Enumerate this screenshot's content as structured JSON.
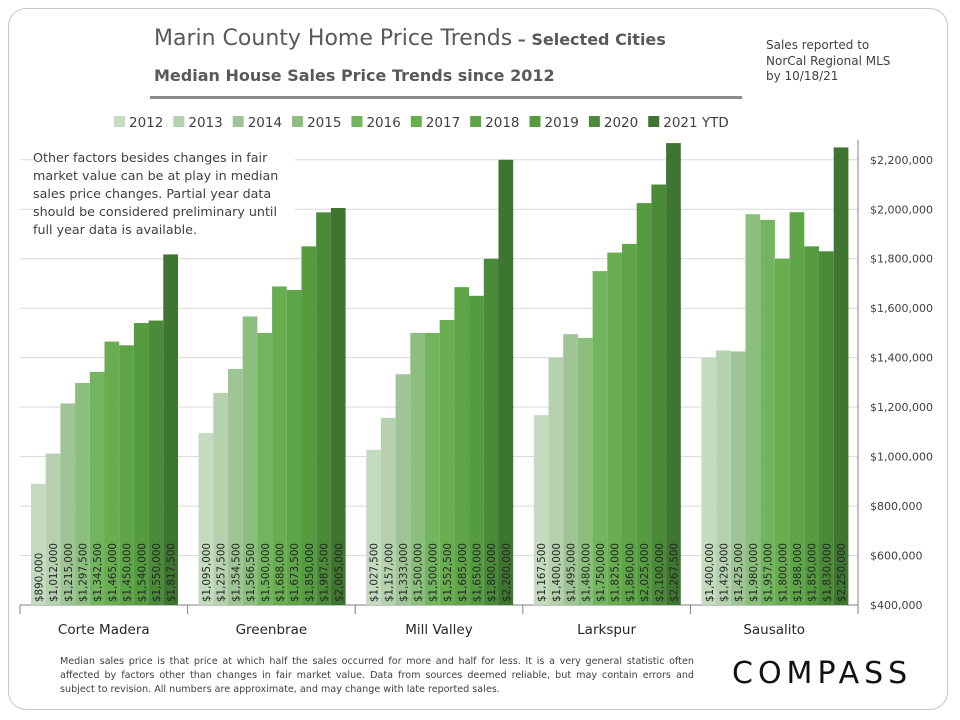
{
  "header": {
    "title_main": "Marin County Home Price Trends",
    "title_suffix": " – Selected Cities",
    "subtitle": "Median House Sales Price Trends since 2012",
    "source_lines": [
      "Sales reported to",
      "NorCal Regional MLS",
      "by 10/18/21"
    ]
  },
  "note_text": "Other factors besides changes in fair market value can be at play in median sales price changes. Partial year data should be considered preliminary until full year data is available.",
  "footnote": "Median sales price is that price at which half the sales occurred for more and half for less. It is a very general statistic often affected by factors other than changes in fair market value. Data from sources deemed reliable, but may contain errors and subject to revision. All numbers are approximate, and may change with late reported sales.",
  "logo_text": "COMPASS",
  "chart_data": {
    "type": "bar",
    "categories": [
      "Corte Madera",
      "Greenbrae",
      "Mill Valley",
      "Larkspur",
      "Sausalito"
    ],
    "ylim": [
      400000,
      2280000
    ],
    "yticks": [
      400000,
      600000,
      800000,
      1000000,
      1200000,
      1400000,
      1600000,
      1800000,
      2000000,
      2200000
    ],
    "ytick_labels": [
      "$400,000",
      "$600,000",
      "$800,000",
      "$1,000,000",
      "$1,200,000",
      "$1,400,000",
      "$1,600,000",
      "$1,800,000",
      "$2,000,000",
      "$2,200,000"
    ],
    "legend_position": "top",
    "grid": "horizontal",
    "series": [
      {
        "name": "2012",
        "color": "#c5dbbf",
        "values": [
          890000,
          1095000,
          1027500,
          1167500,
          1400000
        ],
        "labels": [
          "$890,000",
          "$1,095,000",
          "$1,027,500",
          "$1,167,500",
          "$1,400,000"
        ]
      },
      {
        "name": "2013",
        "color": "#b5d1ad",
        "values": [
          1012000,
          1257500,
          1157000,
          1400000,
          1429000
        ],
        "labels": [
          "$1,012,000",
          "$1,257,500",
          "$1,157,000",
          "$1,400,000",
          "$1,429,000"
        ]
      },
      {
        "name": "2014",
        "color": "#9fc496",
        "values": [
          1215000,
          1354500,
          1333000,
          1495000,
          1425000
        ],
        "labels": [
          "$1,215,000",
          "$1,354,500",
          "$1,333,000",
          "$1,495,000",
          "$1,425,000"
        ]
      },
      {
        "name": "2015",
        "color": "#8cbf7e",
        "values": [
          1297500,
          1566500,
          1500000,
          1480000,
          1980000
        ],
        "labels": [
          "$1,297,500",
          "$1,566,500",
          "$1,500,000",
          "$1,480,000",
          "$1,980,000"
        ]
      },
      {
        "name": "2016",
        "color": "#73b55e",
        "values": [
          1342500,
          1500000,
          1500000,
          1750000,
          1957000
        ],
        "labels": [
          "$1,342,500",
          "$1,500,000",
          "$1,500,000",
          "$1,750,000",
          "$1,957,000"
        ]
      },
      {
        "name": "2017",
        "color": "#68ad4f",
        "values": [
          1465000,
          1688000,
          1552500,
          1825000,
          1800000
        ],
        "labels": [
          "$1,465,000",
          "$1,688,000",
          "$1,552,500",
          "$1,825,000",
          "$1,800,000"
        ]
      },
      {
        "name": "2018",
        "color": "#5ea548",
        "values": [
          1450000,
          1673500,
          1685000,
          1860000,
          1988000
        ],
        "labels": [
          "$1,450,000",
          "$1,673,500",
          "$1,685,000",
          "$1,860,000",
          "$1,988,000"
        ]
      },
      {
        "name": "2019",
        "color": "#559b40",
        "values": [
          1540000,
          1850000,
          1650000,
          2025000,
          1850000
        ],
        "labels": [
          "$1,540,000",
          "$1,850,000",
          "$1,650,000",
          "$2,025,000",
          "$1,850,000"
        ]
      },
      {
        "name": "2020",
        "color": "#4a8a38",
        "values": [
          1550000,
          1987500,
          1800000,
          2100000,
          1830000
        ],
        "labels": [
          "$1,550,000",
          "$1,987,500",
          "$1,800,000",
          "$2,100,000",
          "$1,830,000"
        ]
      },
      {
        "name": "2021 YTD",
        "color": "#3e7530",
        "values": [
          1817500,
          2005000,
          2200000,
          2267500,
          2250000
        ],
        "labels": [
          "$1,817,500",
          "$2,005,000",
          "$2,200,000",
          "$2,267,500",
          "$2,250,000"
        ]
      }
    ]
  }
}
